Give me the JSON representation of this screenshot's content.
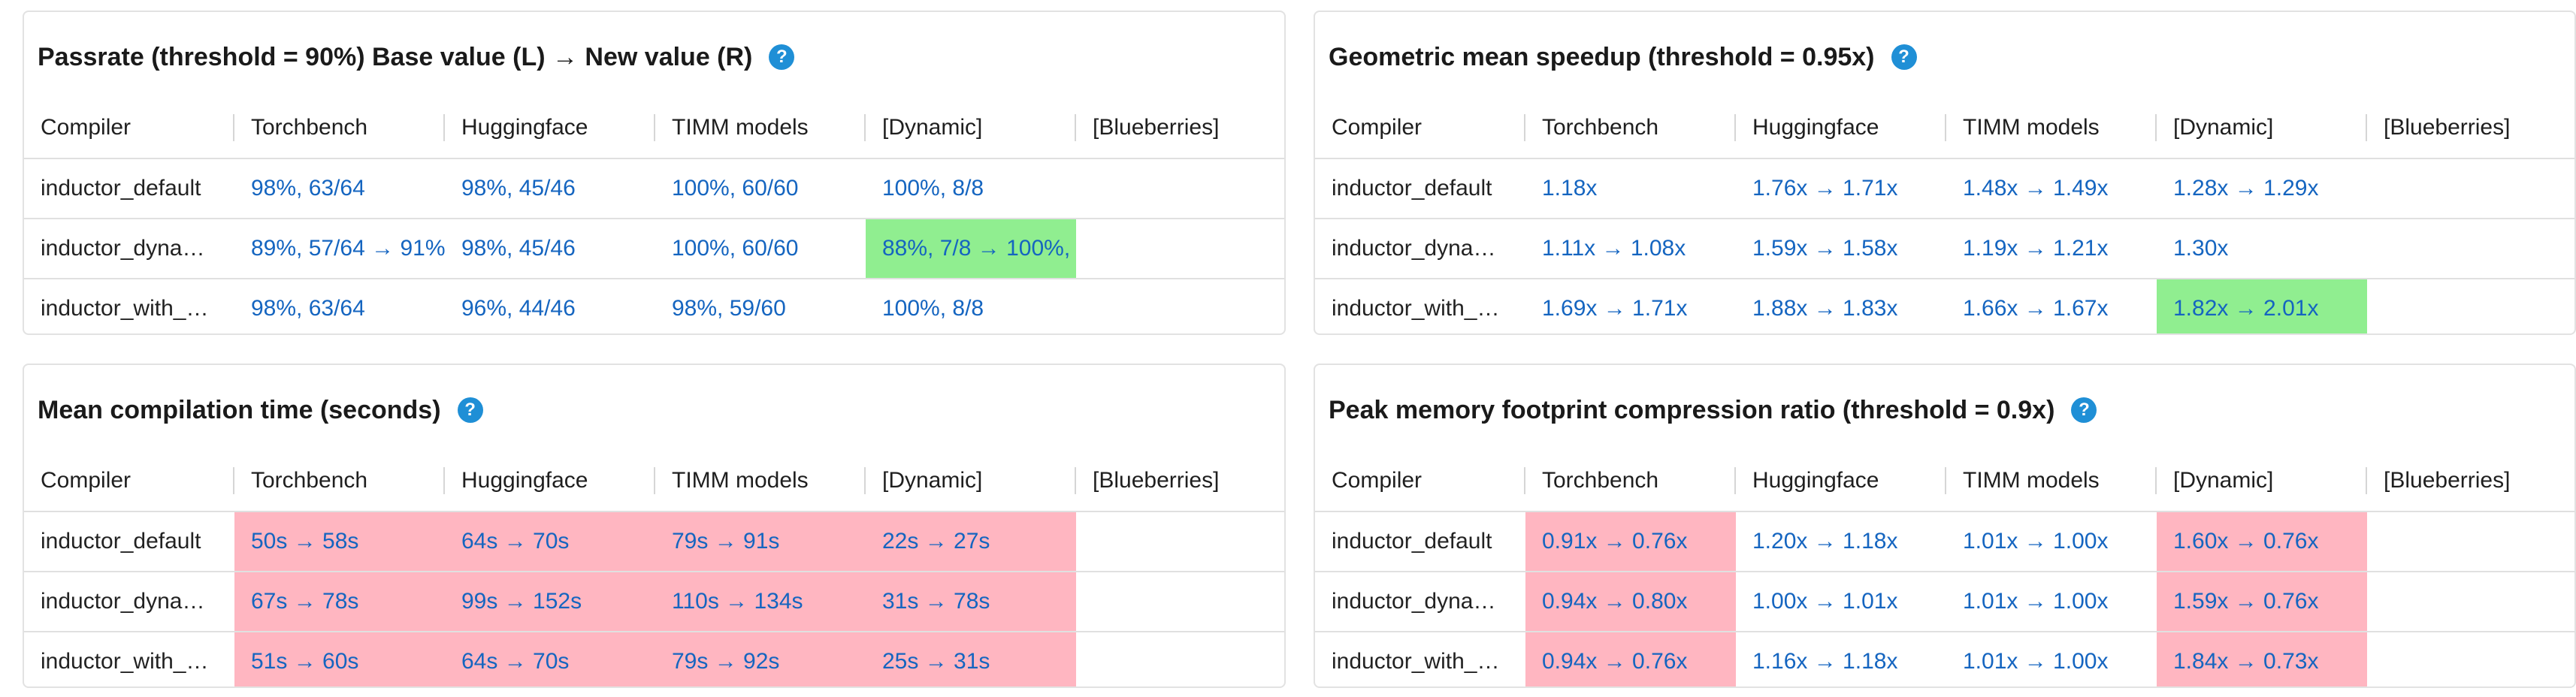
{
  "columns": [
    "Compiler",
    "Torchbench",
    "Huggingface",
    "TIMM models",
    "[Dynamic]",
    "[Blueberries]"
  ],
  "panels": [
    {
      "title": "Passrate (threshold = 90%) Base value (L) → New value (R)",
      "rows": [
        {
          "compiler": "inductor_default",
          "cells": [
            {
              "text": "98%, 63/64",
              "status": "none"
            },
            {
              "text": "98%, 45/46",
              "status": "none"
            },
            {
              "text": "100%, 60/60",
              "status": "none"
            },
            {
              "text": "100%, 8/8",
              "status": "none"
            },
            {
              "text": "",
              "status": "none"
            }
          ]
        },
        {
          "compiler": "inductor_dyna…",
          "cells": [
            {
              "text": "89%, 57/64 → 91%",
              "status": "none"
            },
            {
              "text": "98%, 45/46",
              "status": "none"
            },
            {
              "text": "100%, 60/60",
              "status": "none"
            },
            {
              "text": "88%, 7/8 → 100%,",
              "status": "good"
            },
            {
              "text": "",
              "status": "none"
            }
          ]
        },
        {
          "compiler": "inductor_with_…",
          "cells": [
            {
              "text": "98%, 63/64",
              "status": "none"
            },
            {
              "text": "96%, 44/46",
              "status": "none"
            },
            {
              "text": "98%, 59/60",
              "status": "none"
            },
            {
              "text": "100%, 8/8",
              "status": "none"
            },
            {
              "text": "",
              "status": "none"
            }
          ]
        }
      ]
    },
    {
      "title": "Geometric mean speedup (threshold = 0.95x)",
      "rows": [
        {
          "compiler": "inductor_default",
          "cells": [
            {
              "text": "1.18x",
              "status": "none"
            },
            {
              "text": "1.76x → 1.71x",
              "status": "none"
            },
            {
              "text": "1.48x → 1.49x",
              "status": "none"
            },
            {
              "text": "1.28x → 1.29x",
              "status": "none"
            },
            {
              "text": "",
              "status": "none"
            }
          ]
        },
        {
          "compiler": "inductor_dyna…",
          "cells": [
            {
              "text": "1.11x → 1.08x",
              "status": "none"
            },
            {
              "text": "1.59x → 1.58x",
              "status": "none"
            },
            {
              "text": "1.19x → 1.21x",
              "status": "none"
            },
            {
              "text": "1.30x",
              "status": "none"
            },
            {
              "text": "",
              "status": "none"
            }
          ]
        },
        {
          "compiler": "inductor_with_…",
          "cells": [
            {
              "text": "1.69x → 1.71x",
              "status": "none"
            },
            {
              "text": "1.88x → 1.83x",
              "status": "none"
            },
            {
              "text": "1.66x → 1.67x",
              "status": "none"
            },
            {
              "text": "1.82x → 2.01x",
              "status": "good"
            },
            {
              "text": "",
              "status": "none"
            }
          ]
        }
      ]
    },
    {
      "title": "Mean compilation time (seconds)",
      "rows": [
        {
          "compiler": "inductor_default",
          "cells": [
            {
              "text": "50s → 58s",
              "status": "bad"
            },
            {
              "text": "64s → 70s",
              "status": "bad"
            },
            {
              "text": "79s → 91s",
              "status": "bad"
            },
            {
              "text": "22s → 27s",
              "status": "bad"
            },
            {
              "text": "",
              "status": "none"
            }
          ]
        },
        {
          "compiler": "inductor_dyna…",
          "cells": [
            {
              "text": "67s → 78s",
              "status": "bad"
            },
            {
              "text": "99s → 152s",
              "status": "bad"
            },
            {
              "text": "110s → 134s",
              "status": "bad"
            },
            {
              "text": "31s → 78s",
              "status": "bad"
            },
            {
              "text": "",
              "status": "none"
            }
          ]
        },
        {
          "compiler": "inductor_with_…",
          "cells": [
            {
              "text": "51s → 60s",
              "status": "bad"
            },
            {
              "text": "64s → 70s",
              "status": "bad"
            },
            {
              "text": "79s → 92s",
              "status": "bad"
            },
            {
              "text": "25s → 31s",
              "status": "bad"
            },
            {
              "text": "",
              "status": "none"
            }
          ]
        }
      ]
    },
    {
      "title": "Peak memory footprint compression ratio (threshold = 0.9x)",
      "rows": [
        {
          "compiler": "inductor_default",
          "cells": [
            {
              "text": "0.91x → 0.76x",
              "status": "bad"
            },
            {
              "text": "1.20x → 1.18x",
              "status": "none"
            },
            {
              "text": "1.01x → 1.00x",
              "status": "none"
            },
            {
              "text": "1.60x → 0.76x",
              "status": "bad"
            },
            {
              "text": "",
              "status": "none"
            }
          ]
        },
        {
          "compiler": "inductor_dyna…",
          "cells": [
            {
              "text": "0.94x → 0.80x",
              "status": "bad"
            },
            {
              "text": "1.00x → 1.01x",
              "status": "none"
            },
            {
              "text": "1.01x → 1.00x",
              "status": "none"
            },
            {
              "text": "1.59x → 0.76x",
              "status": "bad"
            },
            {
              "text": "",
              "status": "none"
            }
          ]
        },
        {
          "compiler": "inductor_with_…",
          "cells": [
            {
              "text": "0.94x → 0.76x",
              "status": "bad"
            },
            {
              "text": "1.16x → 1.18x",
              "status": "none"
            },
            {
              "text": "1.01x → 1.00x",
              "status": "none"
            },
            {
              "text": "1.84x → 0.73x",
              "status": "bad"
            },
            {
              "text": "",
              "status": "none"
            }
          ]
        }
      ]
    }
  ],
  "help_glyph": "?",
  "colors": {
    "help": "#1f8fd6",
    "link": "#1565c0",
    "regression": "#ffb6c1",
    "improvement": "#90ee90"
  }
}
